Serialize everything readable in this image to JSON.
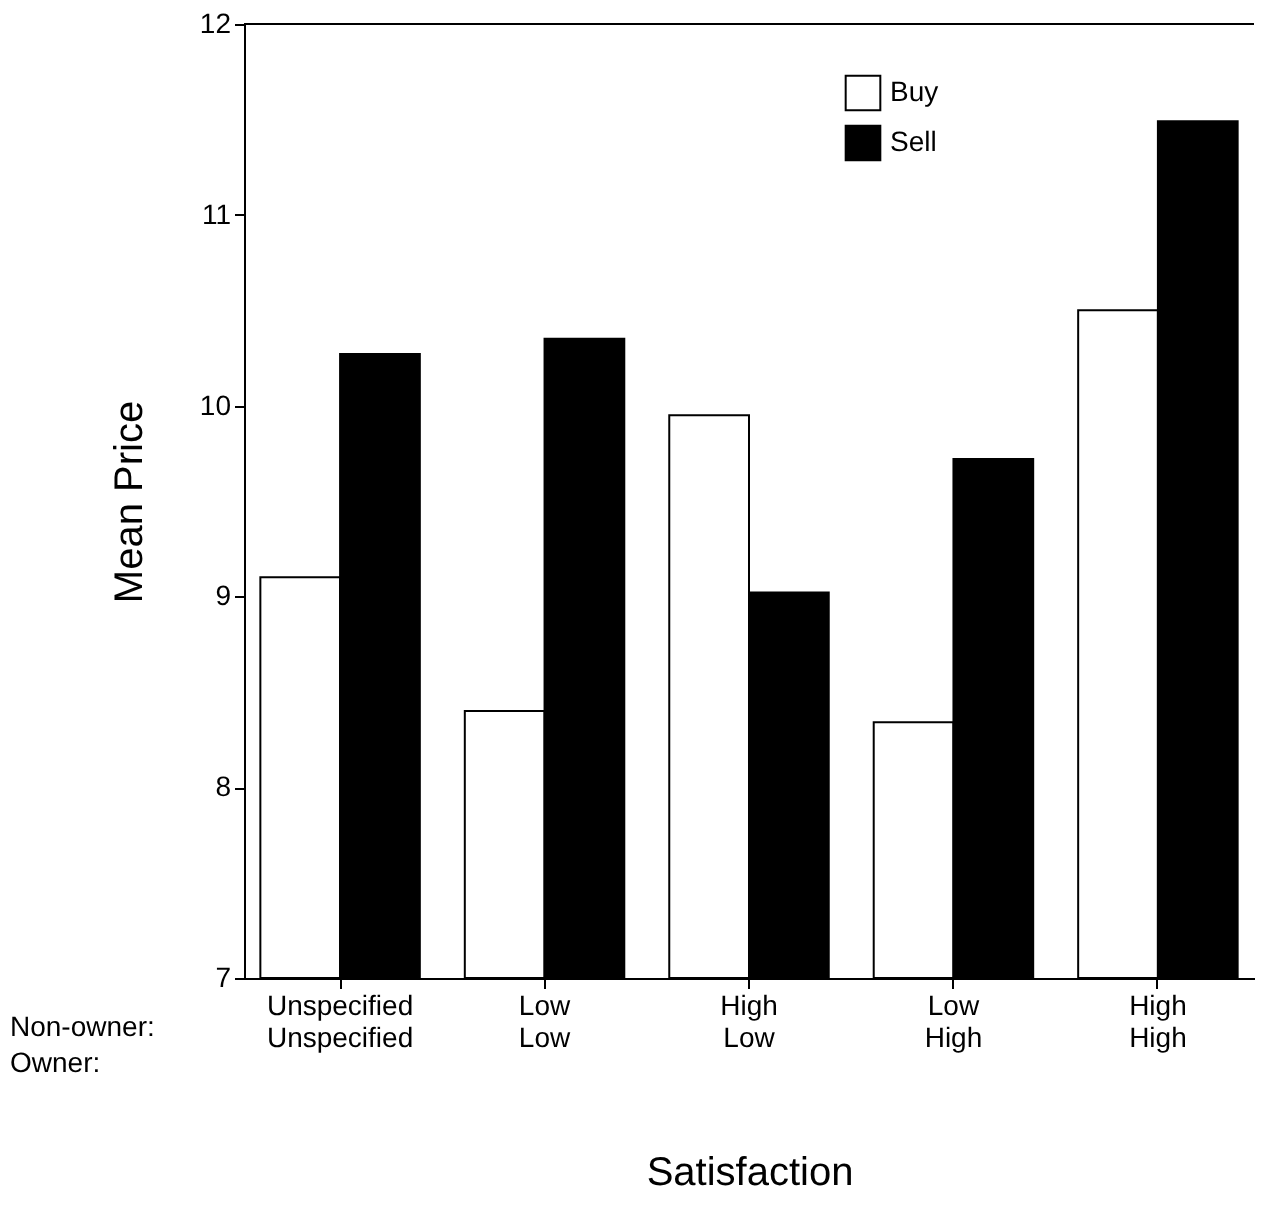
{
  "chart_data": {
    "type": "bar",
    "xlabel": "Satisfaction",
    "ylabel": "Mean Price",
    "categories": [
      "Unspecified\nUnspecified",
      "Low\nLow",
      "High\nLow",
      "Low\nHigh",
      "High\nHigh"
    ],
    "series": [
      {
        "name": "Buy",
        "color": "#ffffff",
        "values": [
          9.1,
          8.4,
          9.95,
          8.34,
          10.5
        ]
      },
      {
        "name": "Sell",
        "color": "#000000",
        "values": [
          10.27,
          10.35,
          9.02,
          9.72,
          11.49
        ]
      }
    ],
    "ylim": [
      7,
      12
    ],
    "yticks": [
      7,
      8,
      9,
      10,
      11,
      12
    ],
    "grid": false,
    "legend": "top right",
    "annotations": [
      "Non-owner:\nOwner:"
    ]
  }
}
